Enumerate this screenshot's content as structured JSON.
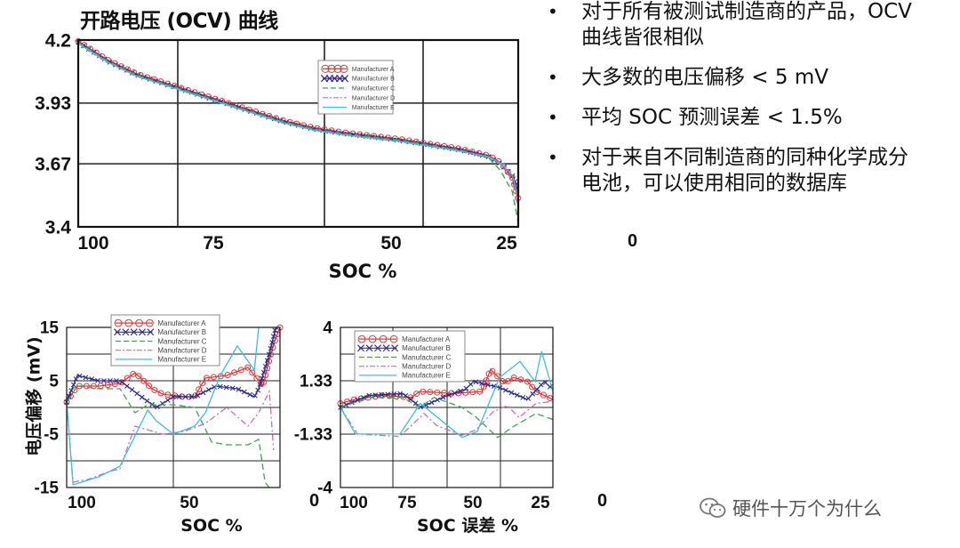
{
  "slide": {
    "title": "开路电压 (OCV) 曲线",
    "bullets": [
      "对于所有被测试制造商的产品，OCV 曲线皆很相似",
      "大多数的电压偏移 < 5 mV",
      "平均 SOC 预测误差 < 1.5%",
      "对于来自不同制造商的同种化学成分电池，可以使用相同的数据库"
    ],
    "stray_tick_labels": [
      "0",
      "0",
      "0"
    ],
    "watermark": "硬件十万个为什么",
    "watermark_icon": "wechat-icon"
  },
  "colors": {
    "Manufacturer A": "#e0393e",
    "Manufacturer B": "#2e2e8a",
    "Manufacturer C": "#3aa84a",
    "Manufacturer D": "#c86cc0",
    "Manufacturer E": "#3cc0d0"
  },
  "chart_data": [
    {
      "type": "line",
      "title": "开路电压 (OCV) 曲线",
      "xlabel": "SOC  %",
      "ylabel": "",
      "xlim": [
        100,
        25
      ],
      "ylim": [
        3.4,
        4.2
      ],
      "xticks": [
        100,
        75,
        50,
        25
      ],
      "yticks": [
        "4.2",
        "3.93",
        "3.67",
        "3.4"
      ],
      "grid": true,
      "legend": "top-right",
      "x": [
        100,
        95,
        90,
        85,
        80,
        75,
        70,
        65,
        60,
        55,
        50,
        45,
        40,
        35,
        30,
        28,
        26,
        25
      ],
      "series": [
        {
          "name": "Manufacturer A",
          "style": "circles",
          "values": [
            4.195,
            4.115,
            4.055,
            4.015,
            3.975,
            3.935,
            3.895,
            3.855,
            3.825,
            3.805,
            3.79,
            3.775,
            3.755,
            3.735,
            3.705,
            3.675,
            3.61,
            3.52
          ]
        },
        {
          "name": "Manufacturer B",
          "style": "crosses",
          "values": [
            4.19,
            4.11,
            4.05,
            4.01,
            3.97,
            3.93,
            3.89,
            3.85,
            3.82,
            3.8,
            3.785,
            3.77,
            3.75,
            3.73,
            3.7,
            3.67,
            3.62,
            3.55
          ]
        },
        {
          "name": "Manufacturer C",
          "style": "dashed",
          "values": [
            4.19,
            4.11,
            4.05,
            4.01,
            3.97,
            3.93,
            3.89,
            3.85,
            3.82,
            3.8,
            3.785,
            3.77,
            3.75,
            3.73,
            3.695,
            3.64,
            3.55,
            3.42
          ]
        },
        {
          "name": "Manufacturer D",
          "style": "dashdot",
          "values": [
            4.187,
            4.107,
            4.047,
            4.007,
            3.967,
            3.927,
            3.887,
            3.847,
            3.817,
            3.797,
            3.782,
            3.767,
            3.747,
            3.727,
            3.697,
            3.667,
            3.6,
            3.48
          ]
        },
        {
          "name": "Manufacturer E",
          "style": "solid",
          "values": [
            4.185,
            4.105,
            4.045,
            4.005,
            3.965,
            3.925,
            3.885,
            3.845,
            3.815,
            3.795,
            3.78,
            3.765,
            3.745,
            3.725,
            3.7,
            3.672,
            3.62,
            3.53
          ]
        }
      ]
    },
    {
      "type": "line",
      "title": "",
      "xlabel": "SOC %",
      "ylabel": "电压偏移 (mV)",
      "xlim": [
        100,
        0
      ],
      "ylim": [
        -15,
        15
      ],
      "xticks": [
        100,
        50
      ],
      "yticks": [
        "15",
        "5",
        "-5",
        "-15"
      ],
      "ytick_values": [
        15,
        5,
        -5,
        -15
      ],
      "grid": true,
      "legend": "top",
      "series": [
        {
          "name": "Manufacturer A",
          "style": "circles",
          "x": [
            100,
            95,
            85,
            75,
            68,
            60,
            55,
            45,
            40,
            35,
            25,
            15,
            10,
            8,
            5,
            2,
            0
          ],
          "values": [
            1,
            4,
            4,
            4.5,
            6.5,
            3.5,
            2.5,
            2,
            2,
            5.5,
            6,
            7.5,
            5,
            4,
            9,
            13,
            15
          ]
        },
        {
          "name": "Manufacturer B",
          "style": "crosses",
          "x": [
            100,
            95,
            85,
            75,
            65,
            58,
            50,
            40,
            30,
            20,
            12,
            10,
            5,
            2
          ],
          "values": [
            1,
            6,
            5,
            5,
            2,
            0,
            2,
            2,
            4,
            3.5,
            2,
            3.5,
            10,
            15
          ]
        },
        {
          "name": "Manufacturer C",
          "style": "dashed",
          "x": [
            100,
            95,
            85,
            75,
            68,
            62,
            50,
            40,
            32,
            25,
            15,
            10,
            7,
            5
          ],
          "values": [
            1,
            4,
            3.5,
            3.5,
            -1,
            0.5,
            0.5,
            0,
            -6.5,
            -7,
            -7,
            -6,
            -14,
            -15
          ]
        },
        {
          "name": "Manufacturer D",
          "style": "dashdot",
          "x": [
            100,
            97,
            90,
            80,
            75,
            68,
            55,
            45,
            35,
            25,
            15,
            10,
            5,
            3
          ],
          "values": [
            1,
            -14,
            -13.5,
            -12,
            -11.5,
            -3.5,
            -5,
            -4.5,
            -3,
            0,
            -3.5,
            -1,
            3,
            -8
          ]
        },
        {
          "name": "Manufacturer E",
          "style": "solid",
          "x": [
            100,
            97,
            85,
            75,
            62,
            58,
            50,
            40,
            35,
            28,
            20,
            12,
            10
          ],
          "values": [
            1,
            -14.5,
            -13,
            -11,
            -0.5,
            -2.5,
            -5,
            -3.5,
            -1,
            6,
            11.5,
            7,
            15
          ]
        }
      ]
    },
    {
      "type": "line",
      "title": "",
      "xlabel": "SOC 误差 %",
      "ylabel": "",
      "xlim": [
        100,
        25
      ],
      "ylim": [
        -4,
        4
      ],
      "xticks": [
        100,
        75,
        50,
        25
      ],
      "yticks": [
        "4",
        "1.33",
        "-1.33",
        "-4"
      ],
      "ytick_values": [
        4,
        1.33,
        -1.33,
        -4
      ],
      "grid": true,
      "legend": "top-left",
      "series": [
        {
          "name": "Manufacturer A",
          "style": "circles",
          "x": [
            100,
            95,
            85,
            75,
            72,
            60,
            50,
            47,
            42,
            39,
            34,
            31,
            25
          ],
          "values": [
            0.2,
            0.4,
            0.6,
            0.5,
            0.8,
            0.7,
            0.8,
            1.9,
            1.2,
            1.5,
            1.3,
            0.8,
            0.4
          ]
        },
        {
          "name": "Manufacturer B",
          "style": "crosses",
          "x": [
            100,
            90,
            78,
            71.5,
            64,
            56,
            53,
            44,
            34,
            28,
            25
          ],
          "values": [
            0,
            0.6,
            0.7,
            0,
            0.5,
            0.9,
            1.3,
            1,
            0.4,
            1.3,
            0.9
          ]
        },
        {
          "name": "Manufacturer C",
          "style": "dashed",
          "x": [
            100,
            90,
            78,
            72,
            67,
            57,
            52,
            44.5,
            39.5,
            31,
            25
          ],
          "values": [
            0,
            0.5,
            0.5,
            0,
            0.5,
            0,
            -0.5,
            -1.5,
            -1,
            -0.3,
            -0.6
          ]
        },
        {
          "name": "Manufacturer D",
          "style": "dashdot",
          "x": [
            100,
            94,
            79,
            70.5,
            66,
            57,
            52,
            46,
            41,
            37,
            31,
            25
          ],
          "values": [
            0,
            -1.33,
            -1.45,
            -0.3,
            -0.9,
            -1.4,
            -1.1,
            -0.2,
            0.1,
            -0.5,
            0.2,
            0.3
          ]
        },
        {
          "name": "Manufacturer E",
          "style": "solid",
          "x": [
            100,
            94.7,
            79,
            71.8,
            57,
            51.7,
            43.8,
            36.6,
            31.3,
            29,
            25
          ],
          "values": [
            0,
            -1.33,
            -1.33,
            0.2,
            -1.5,
            -1.2,
            1.5,
            2.3,
            1.3,
            2.8,
            0.8
          ]
        }
      ]
    }
  ]
}
